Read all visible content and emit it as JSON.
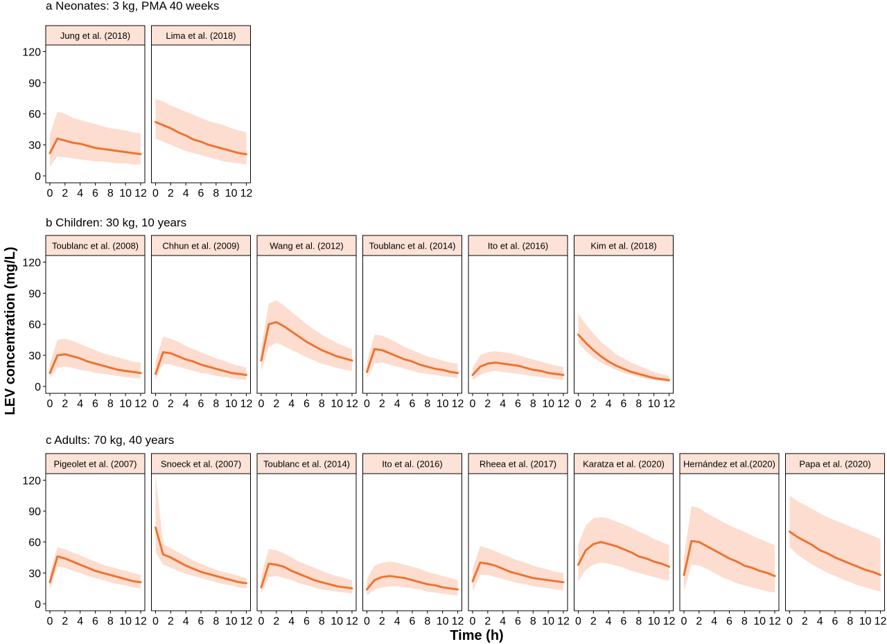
{
  "colors": {
    "line": "#EE7330",
    "band": "#FDDDCF",
    "strip_fill": "#FDE2D7"
  },
  "axes": {
    "ylabel": "LEV concentration (mg/L)",
    "xlabel": "Time (h)"
  },
  "chart_data": [
    {
      "panel_title": "a Neonates: 3 kg, PMA 40 weeks",
      "type": "line",
      "xlim": [
        0,
        12
      ],
      "ylim": [
        0,
        125
      ],
      "x_ticks": [
        0,
        2,
        4,
        6,
        8,
        10,
        12
      ],
      "y_ticks": [
        0,
        30,
        60,
        90,
        120
      ],
      "band": "shaded prediction interval",
      "series": [
        {
          "name": "Jung et al. (2018)",
          "x": [
            0,
            1,
            2,
            3,
            4,
            5,
            6,
            7,
            8,
            9,
            10,
            11,
            12
          ],
          "y": [
            22,
            36,
            34,
            32,
            31,
            29,
            27,
            26,
            25,
            24,
            23,
            22,
            21
          ],
          "lower": [
            9,
            19,
            18,
            17,
            16,
            15,
            14,
            14,
            13,
            12,
            12,
            11,
            11
          ],
          "upper": [
            40,
            62,
            60,
            56,
            54,
            52,
            50,
            48,
            46,
            45,
            44,
            42,
            41
          ]
        },
        {
          "name": "Lima et al. (2018)",
          "x": [
            0,
            1,
            2,
            3,
            4,
            5,
            6,
            7,
            8,
            9,
            10,
            11,
            12
          ],
          "y": [
            52,
            49,
            46,
            42,
            39,
            35,
            33,
            30,
            28,
            26,
            24,
            22,
            21
          ],
          "lower": [
            36,
            33,
            30,
            27,
            24,
            22,
            20,
            18,
            16,
            14,
            13,
            12,
            11
          ],
          "upper": [
            74,
            72,
            68,
            65,
            62,
            59,
            56,
            53,
            51,
            49,
            46,
            44,
            42
          ]
        }
      ]
    },
    {
      "panel_title": "b Children: 30 kg, 10 years",
      "type": "line",
      "xlim": [
        0,
        12
      ],
      "ylim": [
        0,
        125
      ],
      "x_ticks": [
        0,
        2,
        4,
        6,
        8,
        10,
        12
      ],
      "y_ticks": [
        0,
        30,
        60,
        90,
        120
      ],
      "series": [
        {
          "name": "Toublanc et al. (2008)",
          "x": [
            0,
            1,
            2,
            3,
            4,
            5,
            6,
            7,
            8,
            9,
            10,
            11,
            12
          ],
          "y": [
            13,
            30,
            31,
            29,
            27,
            24,
            22,
            20,
            18,
            16,
            15,
            14,
            13
          ],
          "lower": [
            8,
            18,
            19,
            18,
            16,
            15,
            13,
            12,
            11,
            10,
            9,
            8,
            8
          ],
          "upper": [
            22,
            45,
            46,
            44,
            41,
            38,
            35,
            32,
            30,
            28,
            26,
            24,
            23
          ]
        },
        {
          "name": "Chhun et al. (2009)",
          "x": [
            0,
            1,
            2,
            3,
            4,
            5,
            6,
            7,
            8,
            9,
            10,
            11,
            12
          ],
          "y": [
            12,
            33,
            32,
            29,
            26,
            24,
            21,
            19,
            17,
            15,
            13,
            12,
            11
          ],
          "lower": [
            7,
            22,
            21,
            19,
            17,
            15,
            13,
            12,
            10,
            9,
            8,
            7,
            6
          ],
          "upper": [
            24,
            48,
            46,
            43,
            39,
            36,
            33,
            30,
            27,
            25,
            22,
            20,
            18
          ]
        },
        {
          "name": "Wang et al. (2012)",
          "x": [
            0,
            1,
            2,
            3,
            4,
            5,
            6,
            7,
            8,
            9,
            10,
            11,
            12
          ],
          "y": [
            25,
            60,
            62,
            58,
            53,
            48,
            43,
            39,
            35,
            32,
            29,
            27,
            25
          ],
          "lower": [
            15,
            38,
            42,
            39,
            35,
            32,
            28,
            25,
            22,
            20,
            18,
            16,
            15
          ],
          "upper": [
            38,
            80,
            83,
            78,
            72,
            66,
            60,
            55,
            50,
            46,
            42,
            39,
            36
          ]
        },
        {
          "name": "Toublanc et al. (2014)",
          "x": [
            0,
            1,
            2,
            3,
            4,
            5,
            6,
            7,
            8,
            9,
            10,
            11,
            12
          ],
          "y": [
            14,
            36,
            35,
            32,
            29,
            26,
            24,
            21,
            19,
            17,
            16,
            14,
            13
          ],
          "lower": [
            8,
            22,
            23,
            21,
            19,
            17,
            15,
            13,
            12,
            11,
            10,
            9,
            8
          ],
          "upper": [
            24,
            50,
            49,
            46,
            42,
            38,
            35,
            32,
            29,
            27,
            25,
            23,
            22
          ]
        },
        {
          "name": "Ito et al. (2016)",
          "x": [
            0,
            1,
            2,
            3,
            4,
            5,
            6,
            7,
            8,
            9,
            10,
            11,
            12
          ],
          "y": [
            11,
            19,
            22,
            23,
            22,
            21,
            20,
            18,
            16,
            15,
            13,
            12,
            11
          ],
          "lower": [
            6,
            11,
            14,
            15,
            14,
            13,
            12,
            11,
            10,
            9,
            8,
            7,
            6
          ],
          "upper": [
            18,
            30,
            33,
            34,
            33,
            32,
            30,
            28,
            26,
            24,
            22,
            20,
            19
          ]
        },
        {
          "name": "Kim  et al. (2018)",
          "x": [
            0,
            1,
            2,
            3,
            4,
            5,
            6,
            7,
            8,
            9,
            10,
            11,
            12
          ],
          "y": [
            50,
            42,
            35,
            29,
            24,
            20,
            17,
            14,
            12,
            10,
            8,
            7,
            6
          ],
          "lower": [
            42,
            34,
            28,
            23,
            19,
            16,
            13,
            11,
            9,
            7,
            6,
            5,
            4
          ],
          "upper": [
            70,
            60,
            51,
            43,
            37,
            31,
            27,
            23,
            20,
            17,
            14,
            12,
            10
          ]
        }
      ]
    },
    {
      "panel_title": "c Adults: 70 kg, 40 years",
      "type": "line",
      "xlim": [
        0,
        12
      ],
      "ylim": [
        0,
        125
      ],
      "x_ticks": [
        0,
        2,
        4,
        6,
        8,
        10,
        12
      ],
      "y_ticks": [
        0,
        30,
        60,
        90,
        120
      ],
      "series": [
        {
          "name": "Pigeolet et al. (2007)",
          "x": [
            0,
            1,
            2,
            3,
            4,
            5,
            6,
            7,
            8,
            9,
            10,
            11,
            12
          ],
          "y": [
            21,
            46,
            44,
            41,
            38,
            35,
            32,
            30,
            28,
            26,
            24,
            22,
            21
          ],
          "lower": [
            14,
            36,
            35,
            32,
            30,
            27,
            25,
            23,
            21,
            19,
            18,
            16,
            15
          ],
          "upper": [
            30,
            55,
            53,
            50,
            47,
            44,
            41,
            38,
            36,
            34,
            32,
            30,
            28
          ]
        },
        {
          "name": "Snoeck  et al. (2007)",
          "x": [
            0,
            1,
            2,
            3,
            4,
            5,
            6,
            7,
            8,
            9,
            10,
            11,
            12
          ],
          "y": [
            74,
            48,
            45,
            41,
            37,
            34,
            31,
            29,
            27,
            25,
            23,
            21,
            20
          ],
          "lower": [
            50,
            38,
            35,
            32,
            29,
            27,
            25,
            23,
            21,
            19,
            18,
            16,
            15
          ],
          "upper": [
            125,
            58,
            54,
            50,
            46,
            42,
            39,
            36,
            33,
            31,
            29,
            27,
            25
          ]
        },
        {
          "name": "Toublanc et al. (2014)",
          "x": [
            0,
            1,
            2,
            3,
            4,
            5,
            6,
            7,
            8,
            9,
            10,
            11,
            12
          ],
          "y": [
            16,
            39,
            38,
            36,
            32,
            29,
            26,
            23,
            21,
            19,
            17,
            16,
            15
          ],
          "lower": [
            10,
            26,
            27,
            25,
            23,
            20,
            18,
            16,
            14,
            13,
            12,
            11,
            10
          ],
          "upper": [
            28,
            53,
            52,
            49,
            45,
            41,
            38,
            35,
            32,
            29,
            27,
            25,
            23
          ]
        },
        {
          "name": "Ito et al. (2016)",
          "x": [
            0,
            1,
            2,
            3,
            4,
            5,
            6,
            7,
            8,
            9,
            10,
            11,
            12
          ],
          "y": [
            14,
            23,
            26,
            27,
            26,
            25,
            23,
            21,
            19,
            18,
            16,
            15,
            14
          ],
          "lower": [
            8,
            14,
            16,
            17,
            17,
            16,
            15,
            14,
            12,
            11,
            10,
            9,
            8
          ],
          "upper": [
            24,
            37,
            40,
            41,
            40,
            38,
            36,
            34,
            31,
            29,
            27,
            25,
            23
          ]
        },
        {
          "name": "Rheea et al. (2017)",
          "x": [
            0,
            1,
            2,
            3,
            4,
            5,
            6,
            7,
            8,
            9,
            10,
            11,
            12
          ],
          "y": [
            22,
            40,
            39,
            37,
            34,
            31,
            29,
            27,
            25,
            24,
            23,
            22,
            21
          ],
          "lower": [
            12,
            28,
            28,
            26,
            24,
            22,
            20,
            19,
            17,
            16,
            15,
            14,
            13
          ],
          "upper": [
            34,
            56,
            54,
            51,
            48,
            45,
            42,
            40,
            37,
            35,
            33,
            31,
            30
          ]
        },
        {
          "name": "Karatza et al. (2020)",
          "x": [
            0,
            1,
            2,
            3,
            4,
            5,
            6,
            7,
            8,
            9,
            10,
            11,
            12
          ],
          "y": [
            38,
            52,
            58,
            60,
            58,
            56,
            53,
            50,
            46,
            44,
            41,
            39,
            36
          ],
          "lower": [
            22,
            33,
            38,
            40,
            39,
            37,
            35,
            32,
            30,
            28,
            26,
            24,
            22
          ],
          "upper": [
            58,
            76,
            83,
            84,
            83,
            80,
            77,
            74,
            70,
            67,
            63,
            60,
            57
          ]
        },
        {
          "name": "Hernández et al.(2020)",
          "x": [
            0,
            1,
            2,
            3,
            4,
            5,
            6,
            7,
            8,
            9,
            10,
            11,
            12
          ],
          "y": [
            28,
            61,
            60,
            56,
            52,
            48,
            44,
            41,
            37,
            35,
            32,
            30,
            27
          ],
          "lower": [
            12,
            38,
            37,
            34,
            30,
            26,
            23,
            20,
            18,
            16,
            14,
            12,
            11
          ],
          "upper": [
            46,
            95,
            93,
            88,
            84,
            80,
            76,
            73,
            70,
            66,
            63,
            60,
            57
          ]
        },
        {
          "name": "Papa et al. (2020)",
          "x": [
            0,
            1,
            2,
            3,
            4,
            5,
            6,
            7,
            8,
            9,
            10,
            11,
            12
          ],
          "y": [
            70,
            65,
            61,
            57,
            52,
            49,
            45,
            42,
            39,
            36,
            33,
            31,
            28
          ],
          "lower": [
            55,
            48,
            43,
            38,
            34,
            30,
            27,
            24,
            21,
            18,
            16,
            14,
            12
          ],
          "upper": [
            105,
            100,
            96,
            92,
            88,
            84,
            81,
            78,
            75,
            72,
            69,
            66,
            63
          ]
        }
      ]
    }
  ]
}
